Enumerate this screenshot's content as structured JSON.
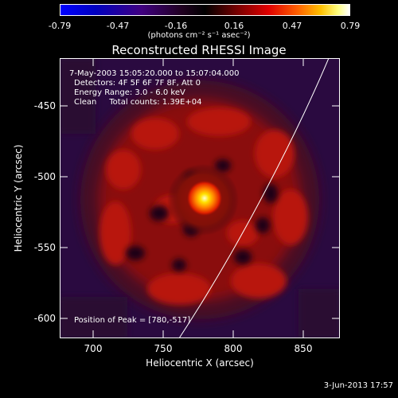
{
  "colorbar": {
    "ticks": [
      "-0.79",
      "-0.47",
      "-0.16",
      "0.16",
      "0.47",
      "0.79"
    ],
    "units": "(photons cm⁻² s⁻¹ asec⁻²)"
  },
  "title": "Reconstructed RHESSI Image",
  "annotation": {
    "time": "7-May-2003 15:05:20.000 to 15:07:04.000",
    "detectors": "Detectors: 4F 5F 6F 7F 8F, Att 0",
    "energy": "Energy Range: 3.0 - 6.0 keV",
    "clean": "Clean     Total counts: 1.39E+04"
  },
  "peak_label": "Position of Peak = [780,-517]",
  "axes": {
    "xlabel": "Heliocentric X (arcsec)",
    "ylabel": "Heliocentric Y (arcsec)",
    "xticks": [
      "700",
      "750",
      "800",
      "850"
    ],
    "yticks": [
      "-450",
      "-500",
      "-550",
      "-600"
    ]
  },
  "footer": "3-Jun-2013 17:57"
}
